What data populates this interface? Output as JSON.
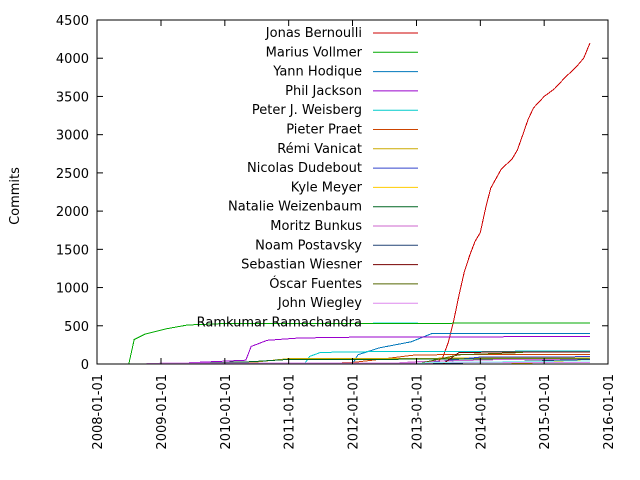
{
  "chart_data": {
    "type": "line",
    "title": "",
    "xlabel": "",
    "ylabel": "Commits",
    "ylim": [
      0,
      4500
    ],
    "xlim": [
      "2008-01-01",
      "2016-01-01"
    ],
    "yticks": [
      0,
      500,
      1000,
      1500,
      2000,
      2500,
      3000,
      3500,
      4000,
      4500
    ],
    "xticks": [
      "2008-01-01",
      "2009-01-01",
      "2010-01-01",
      "2011-01-01",
      "2012-01-01",
      "2013-01-01",
      "2014-01-01",
      "2015-01-01",
      "2016-01-01"
    ],
    "legend_position": "top-left",
    "grid": false,
    "series": [
      {
        "name": "Jonas Bernoulli",
        "color": "#cc0000",
        "points": [
          [
            "2013-04-15",
            0
          ],
          [
            "2013-06-01",
            90
          ],
          [
            "2013-07-01",
            280
          ],
          [
            "2013-08-01",
            560
          ],
          [
            "2013-09-01",
            900
          ],
          [
            "2013-10-01",
            1200
          ],
          [
            "2013-11-01",
            1420
          ],
          [
            "2013-12-01",
            1600
          ],
          [
            "2014-01-01",
            1720
          ],
          [
            "2014-02-01",
            2050
          ],
          [
            "2014-03-01",
            2300
          ],
          [
            "2014-05-01",
            2550
          ],
          [
            "2014-07-01",
            2680
          ],
          [
            "2014-08-01",
            2800
          ],
          [
            "2014-09-01",
            3000
          ],
          [
            "2014-10-01",
            3200
          ],
          [
            "2014-11-01",
            3350
          ],
          [
            "2015-01-01",
            3500
          ],
          [
            "2015-03-01",
            3600
          ],
          [
            "2015-05-01",
            3750
          ],
          [
            "2015-07-01",
            3880
          ],
          [
            "2015-08-15",
            4000
          ],
          [
            "2015-09-20",
            4200
          ]
        ]
      },
      {
        "name": "Marius Vollmer",
        "color": "#00aa00",
        "points": [
          [
            "2008-07-01",
            0
          ],
          [
            "2008-08-01",
            320
          ],
          [
            "2008-10-01",
            390
          ],
          [
            "2009-02-01",
            460
          ],
          [
            "2009-06-01",
            510
          ],
          [
            "2010-01-01",
            530
          ],
          [
            "2015-09-20",
            535
          ]
        ]
      },
      {
        "name": "Yann Hodique",
        "color": "#0077bb",
        "points": [
          [
            "2012-01-01",
            0
          ],
          [
            "2012-02-01",
            120
          ],
          [
            "2012-06-01",
            210
          ],
          [
            "2012-12-01",
            290
          ],
          [
            "2013-04-01",
            400
          ],
          [
            "2015-09-20",
            400
          ]
        ]
      },
      {
        "name": "Phil Jackson",
        "color": "#9900cc",
        "points": [
          [
            "2009-01-01",
            0
          ],
          [
            "2010-05-01",
            50
          ],
          [
            "2010-06-01",
            230
          ],
          [
            "2010-09-01",
            310
          ],
          [
            "2011-03-01",
            340
          ],
          [
            "2012-01-01",
            350
          ],
          [
            "2015-09-20",
            360
          ]
        ]
      },
      {
        "name": "Peter J. Weisberg",
        "color": "#00cccc",
        "points": [
          [
            "2011-04-01",
            0
          ],
          [
            "2011-05-01",
            100
          ],
          [
            "2011-07-01",
            150
          ],
          [
            "2012-01-01",
            160
          ],
          [
            "2015-09-20",
            170
          ]
        ]
      },
      {
        "name": "Pieter Praet",
        "color": "#cc4400",
        "points": [
          [
            "2011-01-01",
            0
          ],
          [
            "2012-01-01",
            20
          ],
          [
            "2012-06-01",
            60
          ],
          [
            "2013-01-01",
            120
          ],
          [
            "2015-09-20",
            125
          ]
        ]
      },
      {
        "name": "Rémi Vanicat",
        "color": "#ccaa00",
        "points": [
          [
            "2009-01-01",
            0
          ],
          [
            "2010-06-01",
            20
          ],
          [
            "2011-01-01",
            70
          ],
          [
            "2015-09-20",
            80
          ]
        ]
      },
      {
        "name": "Nicolas Dudebout",
        "color": "#3344cc",
        "points": [
          [
            "2013-01-01",
            0
          ],
          [
            "2013-06-01",
            40
          ],
          [
            "2014-01-01",
            90
          ],
          [
            "2015-09-20",
            95
          ]
        ]
      },
      {
        "name": "Kyle Meyer",
        "color": "#ffcc00",
        "points": [
          [
            "2014-06-01",
            0
          ],
          [
            "2015-06-01",
            40
          ],
          [
            "2015-09-20",
            70
          ]
        ]
      },
      {
        "name": "Natalie Weizenbaum",
        "color": "#006622",
        "points": [
          [
            "2009-01-01",
            0
          ],
          [
            "2010-06-01",
            30
          ],
          [
            "2011-01-01",
            60
          ],
          [
            "2015-09-20",
            65
          ]
        ]
      },
      {
        "name": "Moritz Bunkus",
        "color": "#cc66cc",
        "points": [
          [
            "2012-06-01",
            0
          ],
          [
            "2013-01-01",
            30
          ],
          [
            "2014-06-01",
            60
          ],
          [
            "2015-09-20",
            62
          ]
        ]
      },
      {
        "name": "Noam Postavsky",
        "color": "#224477",
        "points": [
          [
            "2012-06-01",
            0
          ],
          [
            "2014-01-01",
            20
          ],
          [
            "2015-09-20",
            60
          ]
        ]
      },
      {
        "name": "Sebastian Wiesner",
        "color": "#770000",
        "points": [
          [
            "2013-06-01",
            0
          ],
          [
            "2013-09-01",
            150
          ],
          [
            "2014-09-01",
            160
          ],
          [
            "2015-09-20",
            160
          ]
        ]
      },
      {
        "name": "Óscar Fuentes",
        "color": "#556600",
        "points": [
          [
            "2013-01-01",
            0
          ],
          [
            "2013-09-01",
            120
          ],
          [
            "2014-09-01",
            150
          ]
        ]
      },
      {
        "name": "John Wiegley",
        "color": "#dd88ee",
        "points": [
          [
            "2008-09-01",
            0
          ],
          [
            "2009-01-01",
            10
          ],
          [
            "2015-09-20",
            20
          ]
        ]
      },
      {
        "name": "Ramkumar Ramachandra",
        "color": "#88eeee",
        "points": [
          [
            "2013-01-01",
            0
          ],
          [
            "2013-03-01",
            20
          ],
          [
            "2015-09-20",
            40
          ]
        ]
      }
    ]
  }
}
